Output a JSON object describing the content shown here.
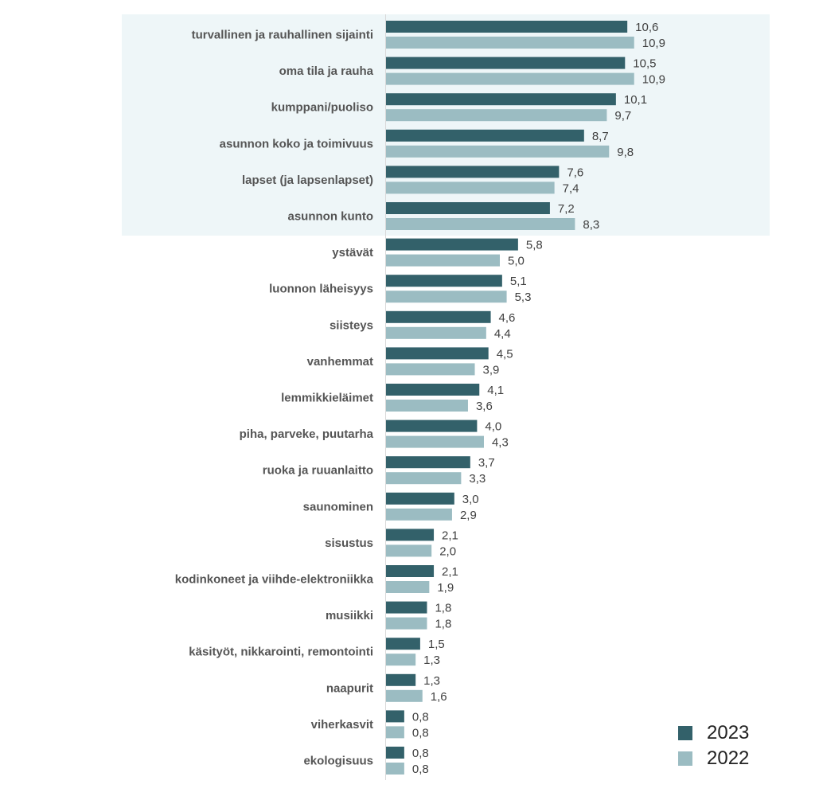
{
  "colors": {
    "series_2023": "#33616a",
    "series_2022": "#9bbcc2",
    "highlight_band": "#eef6f8",
    "axis_line": "#d9d9d9"
  },
  "chart_data": {
    "type": "bar",
    "orientation": "horizontal",
    "title": "",
    "xlabel": "",
    "ylabel": "",
    "xlim": [
      0,
      13.5
    ],
    "grid": false,
    "legend_position": "bottom-right",
    "highlighted_categories": 6,
    "categories": [
      "turvallinen ja rauhallinen sijainti",
      "oma tila ja rauha",
      "kumppani/puoliso",
      "asunnon koko ja toimivuus",
      "lapset (ja lapsenlapset)",
      "asunnon kunto",
      "ystävät",
      "luonnon läheisyys",
      "siisteys",
      "vanhemmat",
      "lemmikkieläimet",
      "piha, parveke, puutarha",
      "ruoka ja ruuanlaitto",
      "saunominen",
      "sisustus",
      "kodinkoneet ja viihde-elektroniikka",
      "musiikki",
      "käsityöt, nikkarointi, remontointi",
      "naapurit",
      "viherkasvit",
      "ekologisuus"
    ],
    "series": [
      {
        "name": "2023",
        "values": [
          10.6,
          10.5,
          10.1,
          8.7,
          7.6,
          7.2,
          5.8,
          5.1,
          4.6,
          4.5,
          4.1,
          4.0,
          3.7,
          3.0,
          2.1,
          2.1,
          1.8,
          1.5,
          1.3,
          0.8,
          0.8
        ],
        "labels": [
          "10,6",
          "10,5",
          "10,1",
          "8,7",
          "7,6",
          "7,2",
          "5,8",
          "5,1",
          "4,6",
          "4,5",
          "4,1",
          "4,0",
          "3,7",
          "3,0",
          "2,1",
          "2,1",
          "1,8",
          "1,5",
          "1,3",
          "0,8",
          "0,8"
        ]
      },
      {
        "name": "2022",
        "values": [
          10.9,
          10.9,
          9.7,
          9.8,
          7.4,
          8.3,
          5.0,
          5.3,
          4.4,
          3.9,
          3.6,
          4.3,
          3.3,
          2.9,
          2.0,
          1.9,
          1.8,
          1.3,
          1.6,
          0.8,
          0.8
        ],
        "labels": [
          "10,9",
          "10,9",
          "9,7",
          "9,8",
          "7,4",
          "8,3",
          "5,0",
          "5,3",
          "4,4",
          "3,9",
          "3,6",
          "4,3",
          "3,3",
          "2,9",
          "2,0",
          "1,9",
          "1,8",
          "1,3",
          "1,6",
          "0,8",
          "0,8"
        ]
      }
    ]
  },
  "legend": {
    "items": [
      {
        "label": "2023"
      },
      {
        "label": "2022"
      }
    ]
  }
}
